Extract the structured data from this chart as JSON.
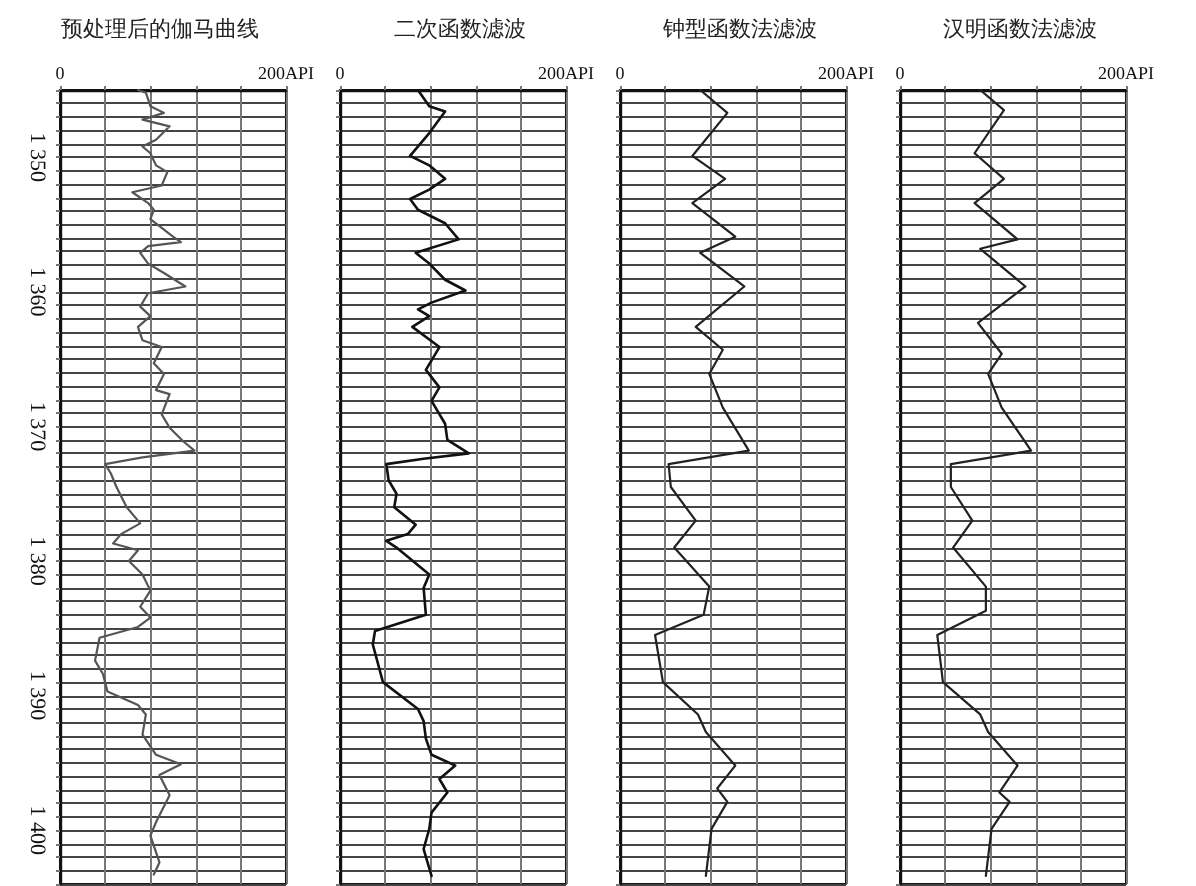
{
  "chart_data": [
    {
      "type": "line",
      "title": "预处理后的伽马曲线",
      "orientation": "horizontal",
      "grid": true,
      "marker": "none",
      "line_style": "solid",
      "xlim": [
        0,
        200
      ],
      "xticks": [
        {
          "value": 0,
          "label": "0"
        },
        {
          "value": 40,
          "label": null
        },
        {
          "value": 80,
          "label": null
        },
        {
          "value": 120,
          "label": null
        },
        {
          "value": 160,
          "label": null
        },
        {
          "value": 200,
          "label": "200API"
        }
      ],
      "ylim": [
        1404,
        1345
      ],
      "yticks": [
        {
          "value": 1345,
          "label": null
        },
        {
          "value": 1346,
          "label": null
        },
        {
          "value": 1347,
          "label": null
        },
        {
          "value": 1348,
          "label": null
        },
        {
          "value": 1349,
          "label": null
        },
        {
          "value": 1350,
          "label": "1 350"
        },
        {
          "value": 1351,
          "label": null
        },
        {
          "value": 1352,
          "label": null
        },
        {
          "value": 1353,
          "label": null
        },
        {
          "value": 1354,
          "label": null
        },
        {
          "value": 1355,
          "label": null
        },
        {
          "value": 1356,
          "label": null
        },
        {
          "value": 1357,
          "label": null
        },
        {
          "value": 1358,
          "label": null
        },
        {
          "value": 1359,
          "label": null
        },
        {
          "value": 1360,
          "label": "1 360"
        },
        {
          "value": 1361,
          "label": null
        },
        {
          "value": 1362,
          "label": null
        },
        {
          "value": 1363,
          "label": null
        },
        {
          "value": 1364,
          "label": null
        },
        {
          "value": 1365,
          "label": null
        },
        {
          "value": 1366,
          "label": null
        },
        {
          "value": 1367,
          "label": null
        },
        {
          "value": 1368,
          "label": null
        },
        {
          "value": 1369,
          "label": null
        },
        {
          "value": 1370,
          "label": "1 370"
        },
        {
          "value": 1371,
          "label": null
        },
        {
          "value": 1372,
          "label": null
        },
        {
          "value": 1373,
          "label": null
        },
        {
          "value": 1374,
          "label": null
        },
        {
          "value": 1375,
          "label": null
        },
        {
          "value": 1376,
          "label": null
        },
        {
          "value": 1377,
          "label": null
        },
        {
          "value": 1378,
          "label": null
        },
        {
          "value": 1379,
          "label": null
        },
        {
          "value": 1380,
          "label": "1 380"
        },
        {
          "value": 1381,
          "label": null
        },
        {
          "value": 1382,
          "label": null
        },
        {
          "value": 1383,
          "label": null
        },
        {
          "value": 1384,
          "label": null
        },
        {
          "value": 1385,
          "label": null
        },
        {
          "value": 1386,
          "label": null
        },
        {
          "value": 1387,
          "label": null
        },
        {
          "value": 1388,
          "label": null
        },
        {
          "value": 1389,
          "label": null
        },
        {
          "value": 1390,
          "label": "1 390"
        },
        {
          "value": 1391,
          "label": null
        },
        {
          "value": 1392,
          "label": null
        },
        {
          "value": 1393,
          "label": null
        },
        {
          "value": 1394,
          "label": null
        },
        {
          "value": 1395,
          "label": null
        },
        {
          "value": 1396,
          "label": null
        },
        {
          "value": 1397,
          "label": null
        },
        {
          "value": 1398,
          "label": null
        },
        {
          "value": 1399,
          "label": null
        },
        {
          "value": 1400,
          "label": "1 400"
        },
        {
          "value": 1401,
          "label": null
        },
        {
          "value": 1402,
          "label": null
        },
        {
          "value": 1403,
          "label": null
        },
        {
          "value": 1404,
          "label": null
        }
      ],
      "series": [
        {
          "color": "#555555",
          "x": [
            1345,
            1345.2,
            1346.2,
            1346.7,
            1347.2,
            1347.7,
            1348.7,
            1349.2,
            1349.7,
            1350.6,
            1351.1,
            1352.1,
            1352.6,
            1353.4,
            1353.9,
            1354.6,
            1355.9,
            1356.3,
            1356.6,
            1357.1,
            1357.9,
            1358.6,
            1359.6,
            1360.1,
            1361.1,
            1361.8,
            1362.6,
            1363.6,
            1364.1,
            1365.3,
            1366.1,
            1367.3,
            1367.6,
            1369.1,
            1370.1,
            1371.1,
            1371.8,
            1372.3,
            1372.8,
            1373.5,
            1374.5,
            1376,
            1377.2,
            1378,
            1378.7,
            1379.2,
            1380,
            1381,
            1382.2,
            1383.4,
            1384.2,
            1384.9,
            1385.7,
            1387.4,
            1388.4,
            1389.7,
            1390.7,
            1391.4,
            1392.9,
            1394.4,
            1395.1,
            1395.9,
            1397.4,
            1399.4,
            1400.4,
            1402.4,
            1403.3
          ],
          "values": [
            69,
            76,
            80,
            92,
            73,
            97,
            85,
            73,
            80,
            85,
            95,
            90,
            64,
            78,
            83,
            80,
            100,
            107,
            78,
            71,
            78,
            92,
            111,
            78,
            71,
            80,
            69,
            73,
            90,
            83,
            92,
            85,
            97,
            90,
            97,
            109,
            119,
            73,
            40,
            45,
            50,
            59,
            71,
            54,
            47,
            69,
            61,
            73,
            80,
            71,
            80,
            69,
            35,
            31,
            38,
            42,
            69,
            76,
            73,
            85,
            107,
            88,
            97,
            85,
            80,
            88,
            83
          ]
        }
      ]
    },
    {
      "type": "line",
      "title": "二次函数滤波",
      "orientation": "horizontal",
      "grid": true,
      "marker": "none",
      "line_style": "solid",
      "tick_labels": "x",
      "xlim": [
        0,
        200
      ],
      "xticks": [
        {
          "value": 0,
          "label": "0"
        },
        {
          "value": 40,
          "label": null
        },
        {
          "value": 80,
          "label": null
        },
        {
          "value": 120,
          "label": null
        },
        {
          "value": 160,
          "label": null
        },
        {
          "value": 200,
          "label": "200API"
        }
      ],
      "ylim": [
        1404,
        1345
      ],
      "yticks": [
        1345,
        1346,
        1347,
        1348,
        1349,
        1350,
        1351,
        1352,
        1353,
        1354,
        1355,
        1356,
        1357,
        1358,
        1359,
        1360,
        1361,
        1362,
        1363,
        1364,
        1365,
        1366,
        1367,
        1368,
        1369,
        1370,
        1371,
        1372,
        1373,
        1374,
        1375,
        1376,
        1377,
        1378,
        1379,
        1380,
        1381,
        1382,
        1383,
        1384,
        1385,
        1386,
        1387,
        1388,
        1389,
        1390,
        1391,
        1392,
        1393,
        1394,
        1395,
        1396,
        1397,
        1398,
        1399,
        1400,
        1401,
        1402,
        1403,
        1404
      ],
      "series": [
        {
          "color": "#111111",
          "x": [
            1345,
            1346.2,
            1346.6,
            1348.2,
            1349.9,
            1350.6,
            1351.6,
            1352.4,
            1353.1,
            1353.9,
            1354.9,
            1356.1,
            1357.1,
            1357.9,
            1359.1,
            1359.9,
            1360.8,
            1361.3,
            1361.8,
            1362.6,
            1364.1,
            1365.8,
            1367.1,
            1368.1,
            1369.8,
            1371,
            1372,
            1372.4,
            1372.8,
            1374,
            1375,
            1376,
            1377.3,
            1378,
            1378.5,
            1379,
            1381,
            1382,
            1384,
            1385.2,
            1386.2,
            1389,
            1391,
            1391.9,
            1393.2,
            1394.4,
            1395.2,
            1396.2,
            1397.2,
            1398.7,
            1399.9,
            1401.4,
            1403.4
          ],
          "values": [
            69,
            79,
            93,
            79,
            62,
            79,
            93,
            79,
            62,
            69,
            93,
            105,
            67,
            79,
            93,
            111,
            81,
            69,
            79,
            64,
            88,
            76,
            88,
            81,
            93,
            95,
            114,
            74,
            41,
            43,
            50,
            48,
            67,
            60,
            41,
            50,
            79,
            74,
            76,
            31,
            29,
            38,
            69,
            74,
            76,
            81,
            102,
            88,
            95,
            81,
            79,
            74,
            81
          ]
        }
      ]
    },
    {
      "type": "line",
      "title": "钟型函数法滤波",
      "orientation": "horizontal",
      "grid": true,
      "marker": "none",
      "line_style": "solid",
      "tick_labels": "x",
      "xlim": [
        0,
        200
      ],
      "xticks": [
        {
          "value": 0,
          "label": "0"
        },
        {
          "value": 40,
          "label": null
        },
        {
          "value": 80,
          "label": null
        },
        {
          "value": 120,
          "label": null
        },
        {
          "value": 160,
          "label": null
        },
        {
          "value": 200,
          "label": "200API"
        }
      ],
      "ylim": [
        1404,
        1345
      ],
      "yticks": [
        1345,
        1346,
        1347,
        1348,
        1349,
        1350,
        1351,
        1352,
        1353,
        1354,
        1355,
        1356,
        1357,
        1358,
        1359,
        1360,
        1361,
        1362,
        1363,
        1364,
        1365,
        1366,
        1367,
        1368,
        1369,
        1370,
        1371,
        1372,
        1373,
        1374,
        1375,
        1376,
        1377,
        1378,
        1379,
        1380,
        1381,
        1382,
        1383,
        1384,
        1385,
        1386,
        1387,
        1388,
        1389,
        1390,
        1391,
        1392,
        1393,
        1394,
        1395,
        1396,
        1397,
        1398,
        1399,
        1400,
        1401,
        1402,
        1403,
        1404
      ],
      "series": [
        {
          "color": "#222222",
          "x": [
            1345,
            1346.7,
            1349.9,
            1351.6,
            1353.4,
            1355.9,
            1357.1,
            1359.6,
            1362.6,
            1364.3,
            1366.1,
            1368.6,
            1371.8,
            1372.8,
            1374.5,
            1377,
            1379,
            1381.9,
            1384,
            1385.5,
            1389,
            1391.4,
            1392.7,
            1395.2,
            1396.9,
            1397.9,
            1399.9,
            1403.4
          ],
          "values": [
            71,
            95,
            64,
            93,
            64,
            102,
            71,
            110,
            67,
            91,
            79,
            91,
            114,
            43,
            45,
            67,
            48,
            79,
            74,
            31,
            38,
            69,
            76,
            102,
            86,
            95,
            81,
            76
          ]
        }
      ]
    },
    {
      "type": "line",
      "title": "汉明函数法滤波",
      "orientation": "horizontal",
      "grid": true,
      "marker": "none",
      "line_style": "solid",
      "tick_labels": "x",
      "xlim": [
        0,
        200
      ],
      "xticks": [
        {
          "value": 0,
          "label": "0"
        },
        {
          "value": 40,
          "label": null
        },
        {
          "value": 80,
          "label": null
        },
        {
          "value": 120,
          "label": null
        },
        {
          "value": 160,
          "label": null
        },
        {
          "value": 200,
          "label": "200API"
        }
      ],
      "ylim": [
        1404,
        1345
      ],
      "yticks": [
        1345,
        1346,
        1347,
        1348,
        1349,
        1350,
        1351,
        1352,
        1353,
        1354,
        1355,
        1356,
        1357,
        1358,
        1359,
        1360,
        1361,
        1362,
        1363,
        1364,
        1365,
        1366,
        1367,
        1368,
        1369,
        1370,
        1371,
        1372,
        1373,
        1374,
        1375,
        1376,
        1377,
        1378,
        1379,
        1380,
        1381,
        1382,
        1383,
        1384,
        1385,
        1386,
        1387,
        1388,
        1389,
        1390,
        1391,
        1392,
        1393,
        1394,
        1395,
        1396,
        1397,
        1398,
        1399,
        1400,
        1401,
        1402,
        1403,
        1404
      ],
      "series": [
        {
          "color": "#222222",
          "x": [
            1345,
            1346.5,
            1349.7,
            1351.6,
            1353.4,
            1356.1,
            1356.8,
            1359.6,
            1362.3,
            1364.6,
            1366.1,
            1368.6,
            1371.8,
            1372.8,
            1374.5,
            1377,
            1379,
            1381.9,
            1383.7,
            1385.5,
            1389,
            1391.4,
            1392.7,
            1395.2,
            1397.2,
            1397.9,
            1399.9,
            1403.4
          ],
          "values": [
            71,
            92,
            66,
            92,
            66,
            104,
            71,
            111,
            69,
            90,
            78,
            90,
            116,
            45,
            45,
            64,
            47,
            76,
            76,
            33,
            38,
            71,
            78,
            104,
            88,
            97,
            81,
            76
          ]
        }
      ]
    }
  ]
}
